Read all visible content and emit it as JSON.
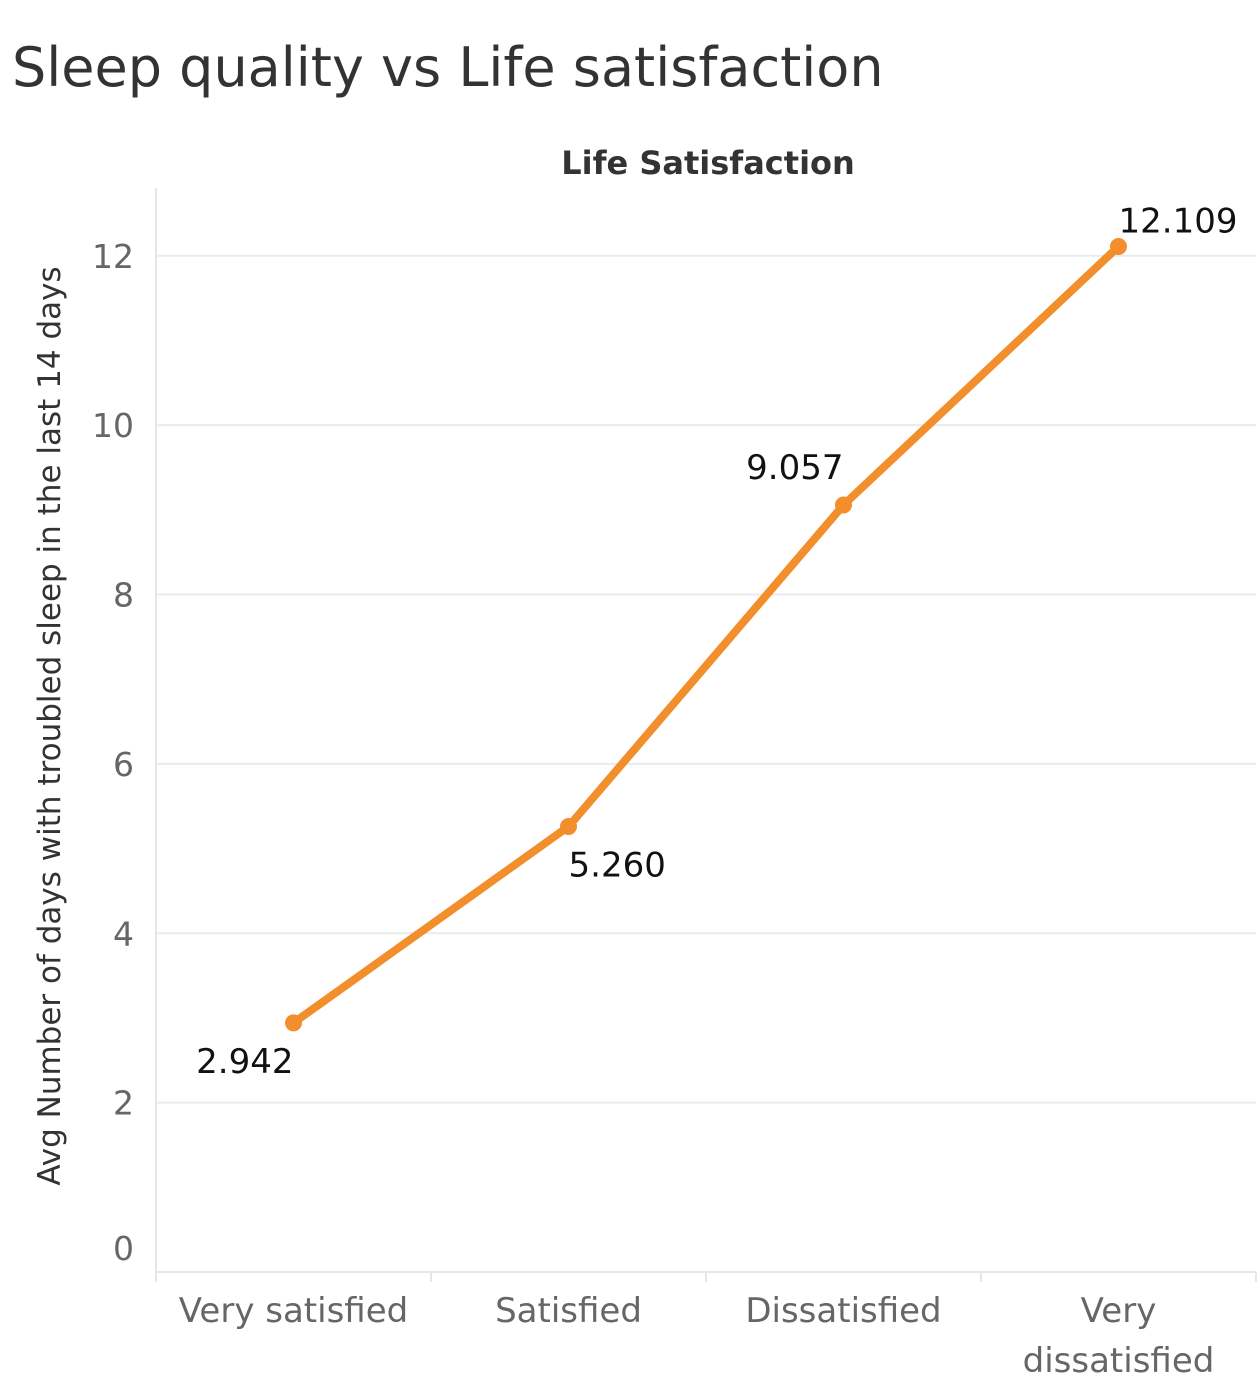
{
  "chart_data": {
    "type": "line",
    "title": "Sleep quality vs Life satisfaction",
    "column_header": "Life Satisfaction",
    "xlabel": "",
    "ylabel": "Avg Number of days with troubled sleep in the last 14 days",
    "categories": [
      [
        "Very satisfied"
      ],
      [
        "Satisfied"
      ],
      [
        "Dissatisfied"
      ],
      [
        "Very",
        "dissatisfied"
      ]
    ],
    "series": [
      {
        "values": [
          2.942,
          5.26,
          9.057,
          12.109
        ],
        "data_labels": [
          "2.942",
          "5.260",
          "9.057",
          "12.109"
        ],
        "color": "#F28E2B"
      }
    ],
    "ylim": [
      0,
      12.8
    ],
    "yticks": [
      0,
      2,
      4,
      6,
      8,
      10,
      12
    ],
    "grid": true,
    "legend": "none",
    "colors": {
      "line": "#F28E2B",
      "gridline": "#EBEBEB",
      "axis": "#E6E6E6",
      "tick_text": "#666666",
      "label_text": "#333333",
      "data_label_text": "#111111"
    }
  }
}
